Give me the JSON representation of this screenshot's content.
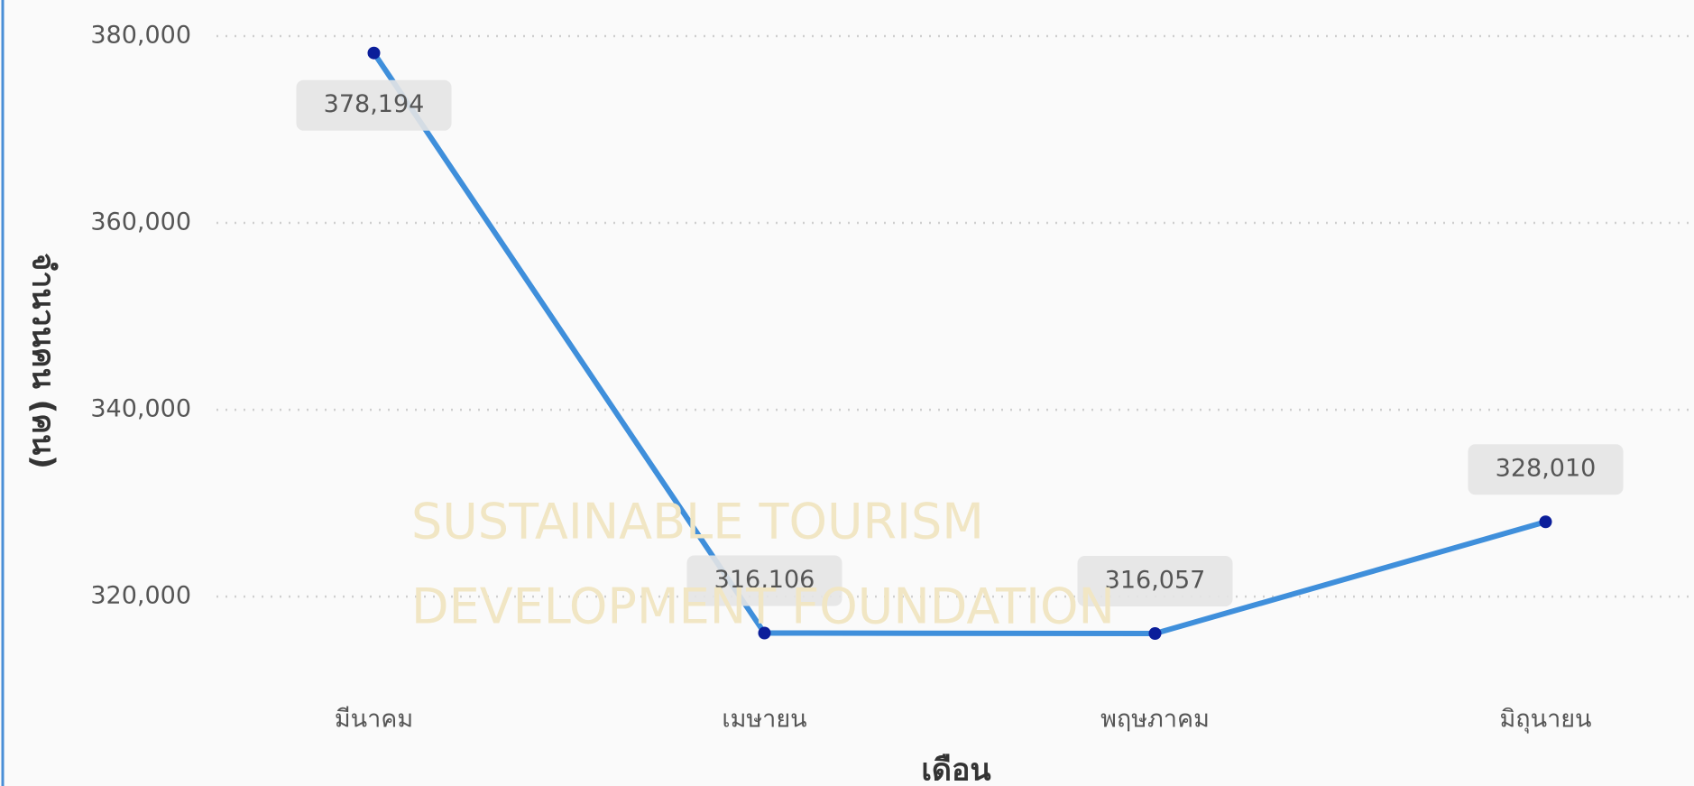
{
  "chart_data": {
    "type": "line",
    "categories": [
      "มีนาคม",
      "เมษายน",
      "พฤษภาคม",
      "มิถุนายน"
    ],
    "series": [
      {
        "name": "จำนวนคน",
        "color": "#3f8fdb",
        "values": [
          378194,
          316106,
          316057,
          328010
        ],
        "value_labels": [
          "378,194",
          "316,106",
          "316,057",
          "328,010"
        ]
      }
    ],
    "ylim": [
      312000,
      380000
    ],
    "yticks": [
      {
        "value": 320000,
        "label": "320,000"
      },
      {
        "value": 340000,
        "label": "340,000"
      },
      {
        "value": 360000,
        "label": "360,000"
      },
      {
        "value": 380000,
        "label": "380,000"
      }
    ],
    "grid": true,
    "y_label": "จำนวนคน (คน)",
    "x_label": "เดือน",
    "annotations": [
      "SUSTAINABLE TOURISM",
      "DEVELOPMENT FOUNDATION"
    ]
  }
}
